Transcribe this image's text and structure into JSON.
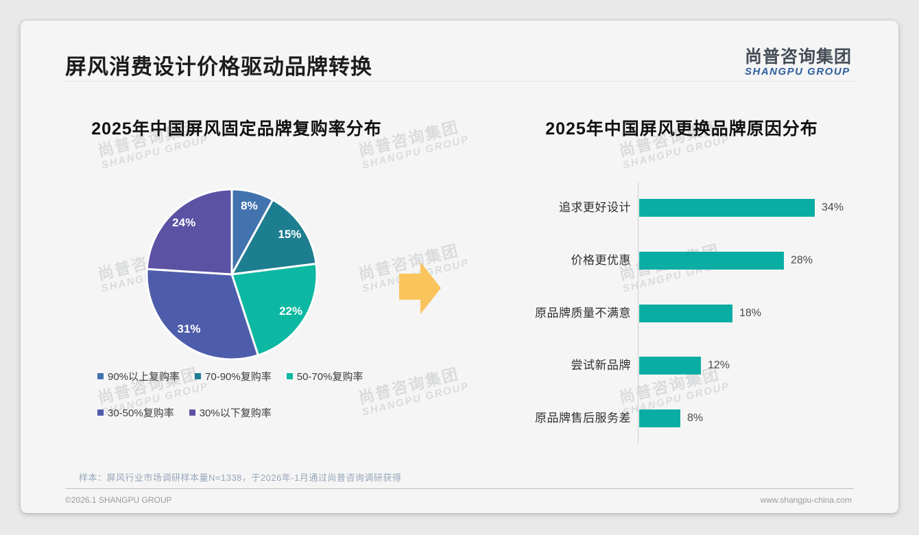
{
  "page": {
    "title": "屏风消费设计价格驱动品牌转换",
    "logo": {
      "cn": "尚普咨询集团",
      "en": "SHANGPU GROUP"
    },
    "watermark": {
      "cn": "尚普咨询集团",
      "en": "SHANGPU GROUP"
    },
    "footnote": "样本：屏风行业市场调研样本量N=1338，于2026年-1月通过尚普咨询调研获得",
    "footer": {
      "copyright": "©2026.1 SHANGPU GROUP",
      "website": "www.shangpu-china.com"
    },
    "colors": {
      "arrow_yellow": "#f9c45c",
      "logo_blue": "#2d5f9e",
      "bar_teal": "#0aada3"
    }
  },
  "chart_data": [
    {
      "type": "pie",
      "title": "2025年中国屏风固定品牌复购率分布",
      "labels": [
        "90%以上复购率",
        "70-90%复购率",
        "50-70%复购率",
        "30-50%复购率",
        "30%以下复购率"
      ],
      "values": [
        8,
        15,
        22,
        31,
        24
      ],
      "data_labels": [
        "8%",
        "15%",
        "22%",
        "31%",
        "24%"
      ],
      "colors": [
        "#4273ae",
        "#1d7e8f",
        "#0cb8a2",
        "#4e5dab",
        "#5b52a3"
      ],
      "start_angle": "top",
      "direction": "clockwise",
      "legend_position": "bottom"
    },
    {
      "type": "bar",
      "orientation": "horizontal",
      "title": "2025年中国屏风更换品牌原因分布",
      "categories": [
        "追求更好设计",
        "价格更优惠",
        "原品牌质量不满意",
        "尝试新品牌",
        "原品牌售后服务差"
      ],
      "values": [
        34,
        28,
        18,
        12,
        8
      ],
      "value_labels": [
        "34%",
        "28%",
        "18%",
        "12%",
        "8%"
      ],
      "bar_color": "#0aada3",
      "xlim": [
        0,
        40
      ],
      "grid": false,
      "legend_position": "none"
    }
  ]
}
